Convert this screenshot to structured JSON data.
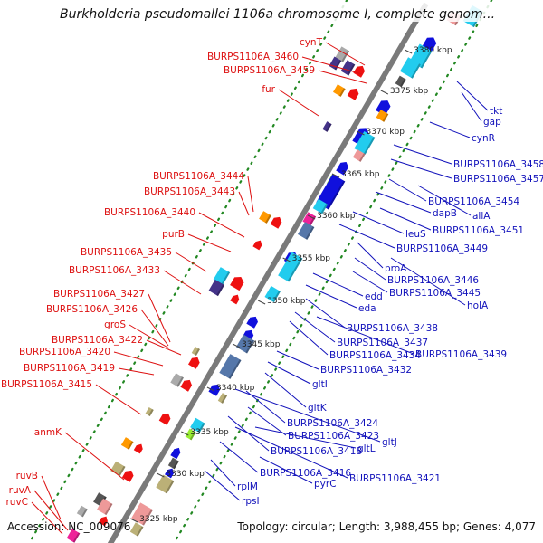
{
  "title": "Burkholderia pseudomallei 1106a chromosome I, complete genom...",
  "colors": {
    "backbone": "#7a7a7a",
    "dots": "#228822",
    "red_label": "#dd1111",
    "blue_label": "#1212bb",
    "gene_red": "#ee1111",
    "gene_blue": "#1010dd",
    "gene_cyan": "#22ccee",
    "gene_orange": "#ff9900",
    "gene_purple": "#443388",
    "gene_steel": "#5577aa",
    "gene_khaki": "#bbb077",
    "gene_pink": "#ee9999",
    "gene_green": "#99ee33",
    "gene_magenta": "#ee2299",
    "gene_gray": "#aaaaaa",
    "gene_darkgray": "#555555"
  },
  "ticks": [
    "3380 kbp",
    "3375 kbp",
    "3370 kbp",
    "3365 kbp",
    "3360 kbp",
    "3355 kbp",
    "3350 kbp",
    "3345 kbp",
    "3340 kbp",
    "3335 kbp",
    "3330 kbp",
    "3325 kbp"
  ],
  "left_labels": [
    "cynT",
    "BURPS1106A_3460",
    "BURPS1106A_3459",
    "fur",
    "BURPS1106A_3444",
    "BURPS1106A_3443",
    "BURPS1106A_3440",
    "purB",
    "BURPS1106A_3435",
    "BURPS1106A_3433",
    "BURPS1106A_3427",
    "BURPS1106A_3426",
    "groS",
    "BURPS1106A_3422",
    "BURPS1106A_3420",
    "BURPS1106A_3419",
    "BURPS1106A_3415",
    "anmK",
    "ruvB",
    "ruvA",
    "ruvC"
  ],
  "right_labels": [
    "tkt",
    "gap",
    "cynR",
    "BURPS1106A_3458",
    "BURPS1106A_3457",
    "BURPS1106A_3454",
    "allA",
    "dapB",
    "BURPS1106A_3451",
    "leuS",
    "BURPS1106A_3449",
    "proA",
    "BURPS1106A_3446",
    "BURPS1106A_3445",
    "holA",
    "edd",
    "eda",
    "BURPS1106A_3438",
    "BURPS1106A_3437",
    "BURPS1106A_3434",
    "BURPS1106A_3439",
    "BURPS1106A_3432",
    "gltI",
    "gltK",
    "BURPS1106A_3424",
    "BURPS1106A_3423",
    "gltJ",
    "BURPS1106A_3418",
    "gltL",
    "BURPS1106A_3416",
    "BURPS1106A_3421",
    "pyrC",
    "rplM",
    "rpsI"
  ],
  "footer": {
    "accession": "Accession: NC_009076",
    "topology": "Topology: circular; Length: 3,988,455 bp; Genes: 4,077"
  }
}
